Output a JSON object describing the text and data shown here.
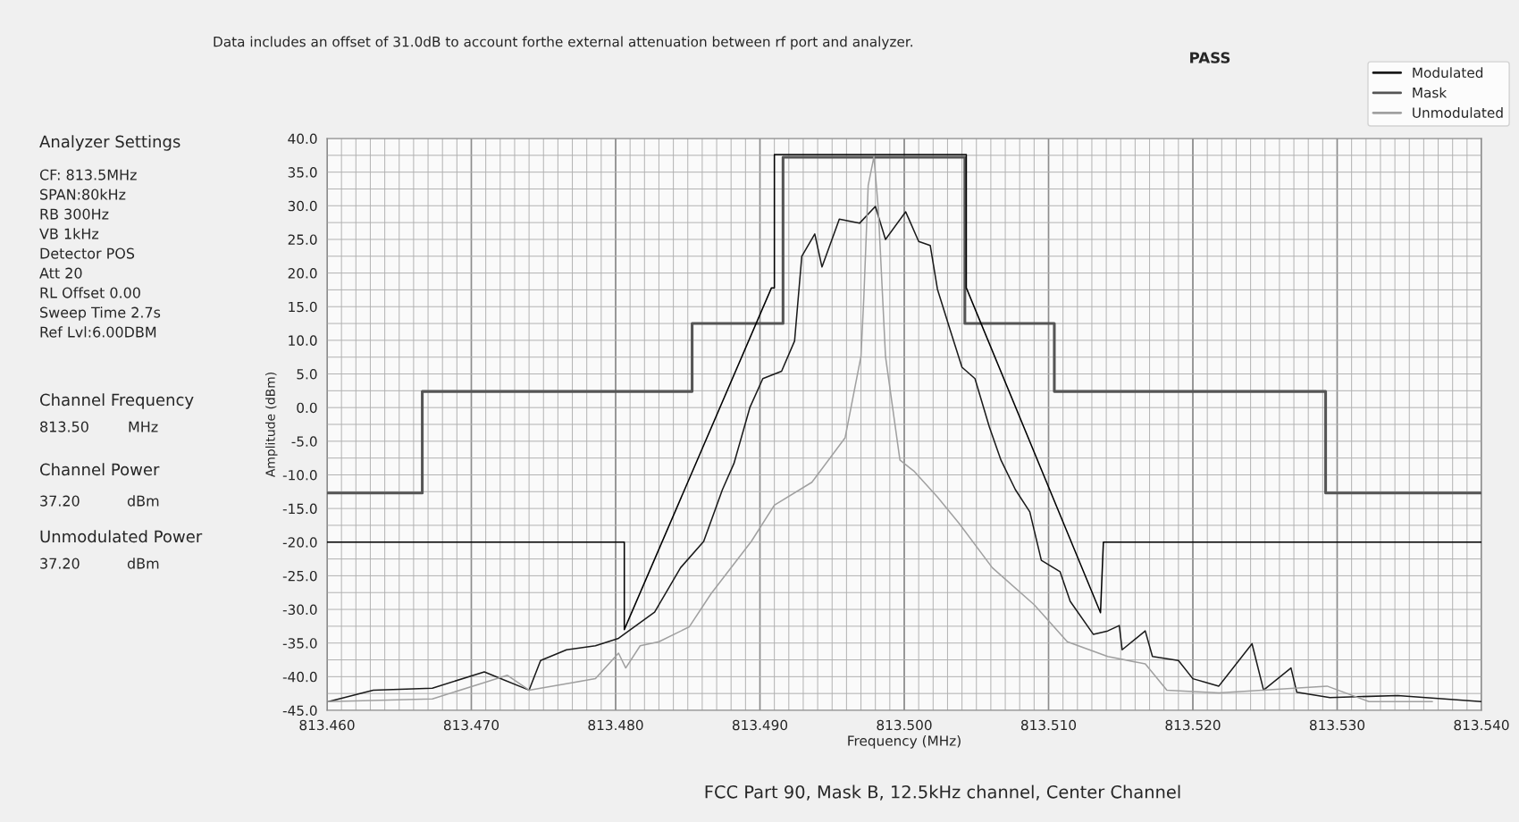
{
  "chart_data": {
    "type": "line",
    "title": "FCC Part 90, Mask B, 12.5kHz channel, Center Channel",
    "xlabel": "Frequency (MHz)",
    "ylabel": "Amplitude (dBm)",
    "xlim": [
      813.46,
      813.54
    ],
    "xticks": [
      {
        "value": 813.46,
        "label": "813.460"
      },
      {
        "value": 813.47,
        "label": "813.470"
      },
      {
        "value": 813.48,
        "label": "813.480"
      },
      {
        "value": 813.49,
        "label": "813.490"
      },
      {
        "value": 813.5,
        "label": "813.500"
      },
      {
        "value": 813.51,
        "label": "813.510"
      },
      {
        "value": 813.52,
        "label": "813.520"
      },
      {
        "value": 813.53,
        "label": "813.530"
      },
      {
        "value": 813.54,
        "label": "813.540"
      }
    ],
    "ylim": [
      -45,
      40
    ],
    "yticks": [
      {
        "value": 40,
        "label": "40.0"
      },
      {
        "value": 35,
        "label": "35.0"
      },
      {
        "value": 30,
        "label": "30.0"
      },
      {
        "value": 25,
        "label": "25.0"
      },
      {
        "value": 20,
        "label": "20.0"
      },
      {
        "value": 15,
        "label": "15.0"
      },
      {
        "value": 10,
        "label": "10.0"
      },
      {
        "value": 5,
        "label": "5.0"
      },
      {
        "value": 0,
        "label": "0.0"
      },
      {
        "value": -5,
        "label": "-5.0"
      },
      {
        "value": -10,
        "label": "-10.0"
      },
      {
        "value": -15,
        "label": "-15.0"
      },
      {
        "value": -20,
        "label": "-20.0"
      },
      {
        "value": -25,
        "label": "-25.0"
      },
      {
        "value": -30,
        "label": "-30.0"
      },
      {
        "value": -35,
        "label": "-35.0"
      },
      {
        "value": -40,
        "label": "-40.0"
      },
      {
        "value": -45,
        "label": "-45.0"
      }
    ],
    "grid": true,
    "legend": "top right",
    "series": [
      {
        "name": "Modulated",
        "color": "#1a1a1a",
        "x": [
          813.4601,
          813.4632,
          813.4673,
          813.4709,
          813.474,
          813.4748,
          813.4766,
          813.4786,
          813.4802,
          813.4827,
          813.4845,
          813.4861,
          813.4874,
          813.4882,
          813.4893,
          813.4902,
          813.4915,
          813.4924,
          813.4929,
          813.4938,
          813.4943,
          813.4955,
          813.4969,
          813.498,
          813.4987,
          813.5001,
          813.501,
          813.5018,
          813.5023,
          813.5032,
          813.504,
          813.5049,
          813.5059,
          813.5067,
          813.5077,
          813.5087,
          813.5095,
          813.5108,
          813.5115,
          813.5131,
          813.5141,
          813.5149,
          813.5151,
          813.5167,
          813.5172,
          813.519,
          813.52,
          813.5218,
          813.5241,
          813.5249,
          813.5268,
          813.5272,
          813.5295,
          813.5342,
          813.54
        ],
        "values": [
          -43.7,
          -42.0,
          -41.7,
          -39.3,
          -42.0,
          -37.6,
          -36.0,
          -35.4,
          -34.3,
          -30.4,
          -23.8,
          -19.9,
          -12.2,
          -8.3,
          0.0,
          4.3,
          5.4,
          9.9,
          22.5,
          25.8,
          20.9,
          28.0,
          27.4,
          29.9,
          25.0,
          29.1,
          24.7,
          24.1,
          17.6,
          11.4,
          6.0,
          4.3,
          -2.9,
          -7.8,
          -12.2,
          -15.5,
          -22.7,
          -24.4,
          -28.8,
          -33.7,
          -33.2,
          -32.4,
          -36.0,
          -33.2,
          -37.0,
          -37.6,
          -40.3,
          -41.4,
          -35.1,
          -42.0,
          -38.7,
          -42.3,
          -43.1,
          -42.8,
          -43.7
        ]
      },
      {
        "name": "Mask",
        "color": "#555555",
        "x": [
          813.46,
          813.4666,
          813.4666,
          813.4853,
          813.4853,
          813.4916,
          813.4916,
          813.5042,
          813.5042,
          813.5104,
          813.5104,
          813.5292,
          813.5292,
          813.54
        ],
        "values": [
          -12.7,
          -12.7,
          2.4,
          2.4,
          12.5,
          12.5,
          37.2,
          37.2,
          12.5,
          12.5,
          2.4,
          2.4,
          -12.7,
          -12.7
        ]
      },
      {
        "name": "Unmodulated",
        "color": "#a0a0a0",
        "x": [
          813.4601,
          813.4673,
          813.4725,
          813.474,
          813.4786,
          813.4802,
          813.4807,
          813.4817,
          813.483,
          813.4851,
          813.4866,
          813.4894,
          813.491,
          813.4936,
          813.4959,
          813.497,
          813.4972,
          813.4975,
          813.4979,
          813.4982,
          813.4987,
          813.4997,
          813.5007,
          813.5023,
          813.5038,
          813.5061,
          813.509,
          813.5113,
          813.5141,
          813.5167,
          813.5182,
          813.5218,
          813.5293,
          813.5322,
          813.5366
        ],
        "values": [
          -43.7,
          -43.3,
          -39.8,
          -42.0,
          -40.3,
          -36.5,
          -38.7,
          -35.4,
          -34.8,
          -32.6,
          -27.7,
          -19.9,
          -14.5,
          -11.1,
          -4.5,
          7.6,
          16.4,
          33.0,
          37.3,
          29.6,
          7.6,
          -7.8,
          -9.5,
          -13.3,
          -17.2,
          -23.8,
          -29.3,
          -34.8,
          -37.0,
          -38.1,
          -42.0,
          -42.4,
          -41.4,
          -43.7,
          -43.7
        ]
      },
      {
        "color": "#000000",
        "x": [
          813.46,
          813.4806,
          813.4806,
          813.4908,
          813.491,
          813.491,
          813.5043,
          813.5043,
          813.5136,
          813.5138,
          813.54
        ],
        "values": [
          -20.0,
          -20.0,
          -33.0,
          17.8,
          17.8,
          37.6,
          37.6,
          17.8,
          -30.5,
          -20.0,
          -20.0
        ]
      }
    ],
    "annotations": [
      "Data includes an offset of 31.0dB to account forthe external attenuation between rf port and analyzer.",
      "PASS",
      "Analyzer Settings",
      "CF: 813.5MHz",
      "SPAN:80kHz",
      "RB 300Hz",
      "VB 1kHz",
      "Detector POS",
      "Att 20",
      "RL Offset 0.00",
      "Sweep Time 2.7s",
      "Ref Lvl:6.00DBM",
      "Channel Frequency",
      "813.50",
      "MHz",
      "Channel Power",
      "37.20",
      "dBm",
      "Unmodulated Power",
      "37.20",
      "dBm"
    ]
  }
}
